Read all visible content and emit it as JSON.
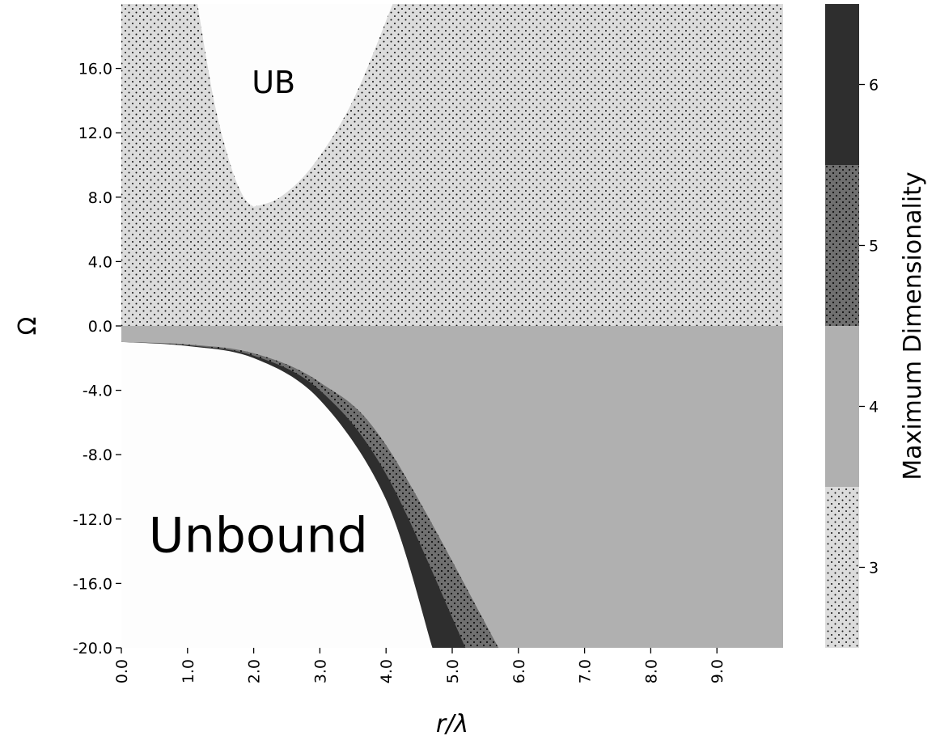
{
  "chart_data": {
    "type": "heatmap",
    "title": "",
    "xlabel": "r/λ",
    "ylabel": "Ω",
    "xlim": [
      0,
      10
    ],
    "ylim": [
      -20,
      20
    ],
    "x_ticks": [
      "0.0",
      "1.0",
      "2.0",
      "3.0",
      "4.0",
      "5.0",
      "6.0",
      "7.0",
      "8.0",
      "9.0"
    ],
    "x_tick_values": [
      0,
      1,
      2,
      3,
      4,
      5,
      6,
      7,
      8,
      9
    ],
    "y_ticks": [
      "16.0",
      "12.0",
      "8.0",
      "4.0",
      "0.0",
      "-4.0",
      "-8.0",
      "-12.0",
      "-16.0",
      "-20.0"
    ],
    "y_tick_values": [
      16,
      12,
      8,
      4,
      0,
      -4,
      -8,
      -12,
      -16,
      -20
    ],
    "colorbar": {
      "label": "Maximum Dimensionality",
      "levels": [
        {
          "value": 3,
          "label": "3",
          "color": "#dcdcdc",
          "pattern": "dots"
        },
        {
          "value": 4,
          "label": "4",
          "color": "#b0b0b0",
          "pattern": "none"
        },
        {
          "value": 5,
          "label": "5",
          "color": "#707070",
          "pattern": "dots"
        },
        {
          "value": 6,
          "label": "6",
          "color": "#2e2e2e",
          "pattern": "none"
        }
      ],
      "range": [
        2.5,
        6.5
      ]
    },
    "regions": [
      {
        "name": "UB",
        "label": "UB",
        "label_at": [
          2.3,
          15.0
        ],
        "boundary_left": [
          [
            1.15,
            20
          ],
          [
            1.4,
            14
          ],
          [
            1.65,
            10
          ],
          [
            1.85,
            8
          ],
          [
            2.0,
            7.4
          ]
        ],
        "boundary_right": [
          [
            2.0,
            7.4
          ],
          [
            2.4,
            8.0
          ],
          [
            2.9,
            10
          ],
          [
            3.5,
            14
          ],
          [
            4.1,
            20
          ]
        ]
      },
      {
        "name": "Unbound",
        "label": "Unbound",
        "label_at": [
          1.0,
          -13.0
        ]
      }
    ],
    "bands": [
      {
        "level": 6,
        "inner": [
          [
            0,
            -1.0
          ],
          [
            1.0,
            -1.25
          ],
          [
            2.0,
            -2.0
          ],
          [
            3.0,
            -4.6
          ],
          [
            4.0,
            -10.8
          ],
          [
            4.7,
            -20
          ]
        ],
        "outer": [
          [
            0,
            -1.0
          ],
          [
            1.0,
            -1.2
          ],
          [
            2.0,
            -1.85
          ],
          [
            3.0,
            -4.0
          ],
          [
            4.0,
            -9.2
          ],
          [
            5.2,
            -20
          ]
        ]
      },
      {
        "level": 5,
        "outer": [
          [
            0,
            -1.0
          ],
          [
            1.0,
            -1.15
          ],
          [
            2.0,
            -1.7
          ],
          [
            3.0,
            -3.5
          ],
          [
            4.0,
            -7.4
          ],
          [
            5.7,
            -20
          ]
        ]
      }
    ]
  }
}
